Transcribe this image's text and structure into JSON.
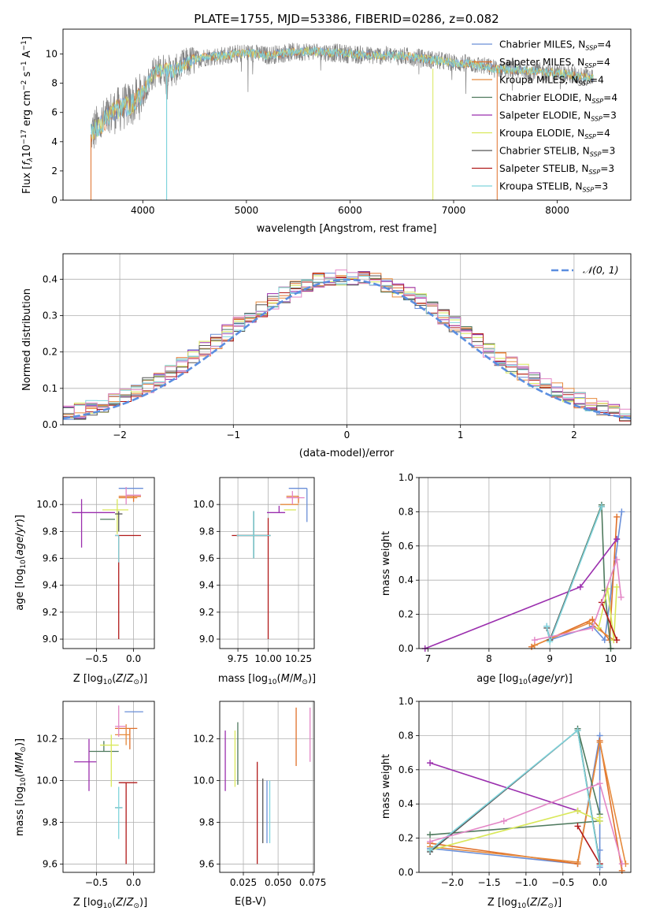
{
  "title": "PLATE=1755, MJD=53386, FIBERID=0286, z=0.082",
  "legend_items": [
    {
      "text": "Chabrier MILES, N$_{SSP}$=4",
      "color": "#6a8fd8"
    },
    {
      "text": "Salpeter MILES, N$_{SSP}$=4",
      "color": "#e0702a"
    },
    {
      "text": "Kroupa MILES, N$_{SSP}$=4",
      "color": "#e68a3c"
    },
    {
      "text": "Chabrier ELODIE, N$_{SSP}$=4",
      "color": "#4f7a5e"
    },
    {
      "text": "Salpeter ELODIE, N$_{SSP}$=3",
      "color": "#9b2fae"
    },
    {
      "text": "Kroupa ELODIE, N$_{SSP}$=4",
      "color": "#d9e85a"
    },
    {
      "text": "Chabrier STELIB, N$_{SSP}$=3",
      "color": "#555555"
    },
    {
      "text": "Salpeter STELIB, N$_{SSP}$=3",
      "color": "#b11a1a"
    },
    {
      "text": "Kroupa STELIB, N$_{SSP}$=3",
      "color": "#7fd4dc"
    }
  ],
  "chart_data": [
    {
      "id": "spectrum",
      "type": "line",
      "xlabel": "wavelength [Angstrom, rest frame]",
      "ylabel": "Flux [$f_\\lambda$10$^{-17}$ erg cm$^{-2}$ s$^{-1}$ A$^{-1}$]",
      "xlim": [
        3230,
        8710
      ],
      "ylim": [
        0,
        11.7
      ],
      "xticks": [
        4000,
        5000,
        6000,
        7000,
        8000
      ],
      "yticks": [
        0,
        2,
        4,
        6,
        8,
        10
      ],
      "continuum": {
        "x": [
          3500,
          3600,
          3700,
          3800,
          3900,
          4000,
          4100,
          4200,
          4300,
          4400,
          4500,
          4600,
          4800,
          5000,
          5200,
          5400,
          5600,
          5800,
          6000,
          6200,
          6400,
          6600,
          6800,
          7000,
          7200,
          7400,
          7600,
          7800,
          8000,
          8200,
          8350
        ],
        "y": [
          4.6,
          5.2,
          6.0,
          6.3,
          6.6,
          7.3,
          8.7,
          9.0,
          8.8,
          9.3,
          9.6,
          9.8,
          9.9,
          10.1,
          9.9,
          10.1,
          10.2,
          10.1,
          10.0,
          9.9,
          9.9,
          9.8,
          9.6,
          9.4,
          9.3,
          9.0,
          8.9,
          8.8,
          8.7,
          8.5,
          8.4
        ]
      },
      "grid": false,
      "legend": "right"
    },
    {
      "id": "residuals",
      "type": "histogram",
      "xlabel": "(data-model)/error",
      "ylabel": "Normed distribution",
      "xlim": [
        -2.5,
        2.5
      ],
      "ylim": [
        0,
        0.47
      ],
      "xticks": [
        -2,
        -1,
        0,
        1,
        2
      ],
      "yticks": [
        0.0,
        0.1,
        0.2,
        0.3,
        0.4
      ],
      "bin_width": 0.1,
      "curve_label": "$\\mathcal{N}(0,1)$",
      "curve_color": "#5b8ee0",
      "grid": true
    },
    {
      "id": "age_vs_Z",
      "type": "scatter",
      "xlabel": "Z [$\\log_{10}(Z/Z_\\odot)$]",
      "ylabel": "age  [$\\log_{10}(age/yr)$]",
      "xlim": [
        -0.95,
        0.28
      ],
      "ylim": [
        8.93,
        10.2
      ],
      "xticks": [
        -0.5,
        0.0
      ],
      "yticks": [
        9.0,
        9.2,
        9.4,
        9.6,
        9.8,
        10.0
      ],
      "points": [
        {
          "x": -0.02,
          "y": 10.12,
          "xerr": [
            0.18,
            0.15
          ],
          "yerr": [
            0.0,
            0.0
          ],
          "color": "#6a8fd8"
        },
        {
          "x": 0.0,
          "y": 10.06,
          "xerr": [
            0.2,
            0.1
          ],
          "yerr": [
            0.04,
            0.0
          ],
          "color": "#e0702a"
        },
        {
          "x": -0.05,
          "y": 10.05,
          "xerr": [
            0.15,
            0.1
          ],
          "yerr": [
            0.0,
            0.0
          ],
          "color": "#e68a3c"
        },
        {
          "x": -0.35,
          "y": 9.89,
          "xerr": [
            0.1,
            0.1
          ],
          "yerr": [
            0.0,
            0.0
          ],
          "color": "#4f7a5e"
        },
        {
          "x": -0.7,
          "y": 9.94,
          "xerr": [
            0.13,
            0.45
          ],
          "yerr": [
            0.26,
            0.1
          ],
          "color": "#9b2fae"
        },
        {
          "x": -0.22,
          "y": 9.96,
          "xerr": [
            0.2,
            0.15
          ],
          "yerr": [
            0.18,
            0.08
          ],
          "color": "#d9e85a"
        },
        {
          "x": -0.2,
          "y": 9.93,
          "xerr": [
            0.05,
            0.05
          ],
          "yerr": [
            0.13,
            0.02
          ],
          "color": "#555555"
        },
        {
          "x": -0.2,
          "y": 9.77,
          "xerr": [
            0.05,
            0.3
          ],
          "yerr": [
            0.77,
            0.0
          ],
          "color": "#b11a1a"
        },
        {
          "x": -0.2,
          "y": 9.77,
          "xerr": [
            0.05,
            0.0
          ],
          "yerr": [
            0.2,
            0.0
          ],
          "color": "#7fd4dc"
        },
        {
          "x": -0.1,
          "y": 10.07,
          "xerr": [
            0.0,
            0.2
          ],
          "yerr": [
            0.07,
            0.06
          ],
          "color": "#e386c6"
        }
      ]
    },
    {
      "id": "age_vs_mass",
      "type": "scatter",
      "xlabel": "mass [$\\log_{10}(M/M_\\odot)$]",
      "ylabel": "",
      "xlim": [
        9.6,
        10.38
      ],
      "ylim": [
        8.93,
        10.2
      ],
      "xticks": [
        9.75,
        10.0,
        10.25
      ],
      "yticks": [
        9.0,
        9.2,
        9.4,
        9.6,
        9.8,
        10.0
      ],
      "points": [
        {
          "x": 10.32,
          "y": 10.12,
          "xerr": [
            0.15,
            0.0
          ],
          "yerr": [
            0.25,
            0.0
          ],
          "color": "#6a8fd8"
        },
        {
          "x": 10.25,
          "y": 10.06,
          "xerr": [
            0.1,
            0.0
          ],
          "yerr": [
            0.05,
            0.0
          ],
          "color": "#e0702a"
        },
        {
          "x": 10.2,
          "y": 10.0,
          "xerr": [
            0.1,
            0.05
          ],
          "yerr": [
            0.0,
            0.0
          ],
          "color": "#e68a3c"
        },
        {
          "x": 9.88,
          "y": 9.77,
          "xerr": [
            0.14,
            0.14
          ],
          "yerr": [
            0.17,
            0.18
          ],
          "color": "#4f7a5e"
        },
        {
          "x": 10.09,
          "y": 9.94,
          "xerr": [
            0.1,
            0.05
          ],
          "yerr": [
            0.0,
            0.05
          ],
          "color": "#9b2fae"
        },
        {
          "x": 10.18,
          "y": 9.96,
          "xerr": [
            0.05,
            0.05
          ],
          "yerr": [
            0.0,
            0.0
          ],
          "color": "#d9e85a"
        },
        {
          "x": 9.88,
          "y": 9.77,
          "xerr": [
            0.14,
            0.14
          ],
          "yerr": [
            0.17,
            0.18
          ],
          "color": "#555555"
        },
        {
          "x": 10.0,
          "y": 9.77,
          "xerr": [
            0.3,
            0.0
          ],
          "yerr": [
            0.77,
            0.13
          ],
          "color": "#b11a1a"
        },
        {
          "x": 9.88,
          "y": 9.77,
          "xerr": [
            0.14,
            0.14
          ],
          "yerr": [
            0.17,
            0.18
          ],
          "color": "#7fd4dc"
        },
        {
          "x": 10.2,
          "y": 10.05,
          "xerr": [
            0.05,
            0.1
          ],
          "yerr": [
            0.05,
            0.05
          ],
          "color": "#e386c6"
        }
      ]
    },
    {
      "id": "weight_vs_age",
      "type": "line",
      "xlabel": "age  [$\\log_{10}(age/yr)$]",
      "ylabel": "mass weight",
      "xlim": [
        6.85,
        10.33
      ],
      "ylim": [
        0,
        1
      ],
      "xticks": [
        7,
        8,
        9,
        10
      ],
      "yticks": [
        0.0,
        0.2,
        0.4,
        0.6,
        0.8,
        1.0
      ],
      "series": [
        {
          "color": "#6a8fd8",
          "x": [
            8.95,
            9.0,
            9.7,
            9.9,
            10.18
          ],
          "y": [
            0.13,
            0.05,
            0.13,
            0.05,
            0.8
          ]
        },
        {
          "color": "#e0702a",
          "x": [
            8.7,
            9.7,
            9.98,
            10.1
          ],
          "y": [
            0.01,
            0.17,
            0.05,
            0.77
          ]
        },
        {
          "color": "#e68a3c",
          "x": [
            8.75,
            9.65,
            10.05
          ],
          "y": [
            0.02,
            0.15,
            0.05
          ]
        },
        {
          "color": "#4f7a5e",
          "x": [
            9.0,
            9.85,
            9.9,
            10.0
          ],
          "y": [
            0.05,
            0.84,
            0.34,
            0.0
          ]
        },
        {
          "color": "#9b2fae",
          "x": [
            6.95,
            9.5,
            10.1
          ],
          "y": [
            0.0,
            0.36,
            0.64
          ]
        },
        {
          "color": "#d9e85a",
          "x": [
            9.8,
            9.95,
            10.05,
            10.1
          ],
          "y": [
            0.12,
            0.35,
            0.05,
            0.36
          ]
        },
        {
          "color": "#555555",
          "x": [
            8.95,
            9.0,
            9.85
          ],
          "y": [
            0.12,
            0.05,
            0.83
          ]
        },
        {
          "color": "#b11a1a",
          "x": [
            9.85,
            10.1
          ],
          "y": [
            0.27,
            0.05
          ]
        },
        {
          "color": "#7fd4dc",
          "x": [
            8.95,
            9.0,
            9.85
          ],
          "y": [
            0.13,
            0.04,
            0.83
          ]
        },
        {
          "color": "#e386c6",
          "x": [
            8.75,
            9.7,
            10.1,
            10.17
          ],
          "y": [
            0.05,
            0.12,
            0.52,
            0.3
          ]
        }
      ],
      "grid": true
    },
    {
      "id": "mass_vs_Z",
      "type": "scatter",
      "xlabel": "Z [$\\log_{10}(Z/Z_\\odot)$]",
      "ylabel": "mass [$\\log_{10}(M/M_\\odot)$]",
      "xlim": [
        -0.95,
        0.28
      ],
      "ylim": [
        9.56,
        10.38
      ],
      "xticks": [
        -0.5,
        0.0
      ],
      "yticks": [
        9.6,
        9.8,
        10.0,
        10.2
      ],
      "points": [
        {
          "x": -0.02,
          "y": 10.33,
          "xerr": [
            0.1,
            0.15
          ],
          "yerr": [
            0.0,
            0.0
          ],
          "color": "#6a8fd8"
        },
        {
          "x": -0.05,
          "y": 10.25,
          "xerr": [
            0.2,
            0.1
          ],
          "yerr": [
            0.1,
            0.0
          ],
          "color": "#e0702a"
        },
        {
          "x": -0.1,
          "y": 10.22,
          "xerr": [
            0.15,
            0.05
          ],
          "yerr": [
            0.05,
            0.05
          ],
          "color": "#e68a3c"
        },
        {
          "x": -0.4,
          "y": 10.14,
          "xerr": [
            0.2,
            0.2
          ],
          "yerr": [
            0.0,
            0.05
          ],
          "color": "#4f7a5e"
        },
        {
          "x": -0.6,
          "y": 10.09,
          "xerr": [
            0.2,
            0.1
          ],
          "yerr": [
            0.14,
            0.11
          ],
          "color": "#9b2fae"
        },
        {
          "x": -0.3,
          "y": 10.17,
          "xerr": [
            0.15,
            0.1
          ],
          "yerr": [
            0.2,
            0.05
          ],
          "color": "#d9e85a"
        },
        {
          "x": -0.2,
          "y": 9.87,
          "xerr": [
            0.05,
            0.05
          ],
          "yerr": [
            0.0,
            0.0
          ],
          "color": "#555555"
        },
        {
          "x": -0.1,
          "y": 9.99,
          "xerr": [
            0.1,
            0.15
          ],
          "yerr": [
            0.39,
            0.0
          ],
          "color": "#b11a1a"
        },
        {
          "x": -0.2,
          "y": 9.87,
          "xerr": [
            0.05,
            0.05
          ],
          "yerr": [
            0.15,
            0.1
          ],
          "color": "#7fd4dc"
        },
        {
          "x": -0.2,
          "y": 10.26,
          "xerr": [
            0.05,
            0.1
          ],
          "yerr": [
            0.05,
            0.1
          ],
          "color": "#e386c6"
        }
      ]
    },
    {
      "id": "mass_vs_ebv",
      "type": "scatter",
      "xlabel": "E(B-V)",
      "ylabel": "",
      "xlim": [
        0.008,
        0.076
      ],
      "ylim": [
        9.56,
        10.38
      ],
      "xticks": [
        0.025,
        0.05,
        0.075
      ],
      "yticks": [
        9.6,
        9.8,
        10.0,
        10.2
      ],
      "points": [
        {
          "x": 0.012,
          "y": 10.1,
          "yerr": [
            0.15,
            0.14
          ],
          "color": "#9b2fae"
        },
        {
          "x": 0.019,
          "y": 10.1,
          "yerr": [
            0.13,
            0.14
          ],
          "color": "#d9e85a"
        },
        {
          "x": 0.021,
          "y": 10.1,
          "yerr": [
            0.12,
            0.18
          ],
          "color": "#4f7a5e"
        },
        {
          "x": 0.035,
          "y": 9.9,
          "yerr": [
            0.3,
            0.19
          ],
          "color": "#b11a1a"
        },
        {
          "x": 0.039,
          "y": 9.85,
          "yerr": [
            0.15,
            0.16
          ],
          "color": "#555555"
        },
        {
          "x": 0.042,
          "y": 9.85,
          "yerr": [
            0.15,
            0.15
          ],
          "color": "#6a8fd8"
        },
        {
          "x": 0.044,
          "y": 9.85,
          "yerr": [
            0.15,
            0.15
          ],
          "color": "#7fd4dc"
        },
        {
          "x": 0.063,
          "y": 10.21,
          "yerr": [
            0.14,
            0.14
          ],
          "color": "#e0702a"
        },
        {
          "x": 0.073,
          "y": 10.22,
          "yerr": [
            0.13,
            0.13
          ],
          "color": "#e386c6"
        }
      ]
    },
    {
      "id": "weight_vs_Z",
      "type": "line",
      "xlabel": "Z [$\\log_{10}(Z/Z_\\odot)$]",
      "ylabel": "mass weight",
      "xlim": [
        -2.45,
        0.42
      ],
      "ylim": [
        0,
        1
      ],
      "xticks": [
        -2.0,
        -1.5,
        -1.0,
        -0.5,
        0.0
      ],
      "yticks": [
        0.0,
        0.2,
        0.4,
        0.6,
        0.8,
        1.0
      ],
      "series": [
        {
          "color": "#6a8fd8",
          "x": [
            -2.3,
            -0.3,
            0.0,
            0.0,
            0.0
          ],
          "y": [
            0.14,
            0.05,
            0.8,
            0.13,
            0.03
          ]
        },
        {
          "color": "#e0702a",
          "x": [
            -2.3,
            -0.3,
            0.0,
            0.3
          ],
          "y": [
            0.17,
            0.05,
            0.77,
            0.01
          ]
        },
        {
          "color": "#e68a3c",
          "x": [
            -2.3,
            -0.3,
            0.0,
            0.35
          ],
          "y": [
            0.15,
            0.06,
            0.76,
            0.05
          ]
        },
        {
          "color": "#4f7a5e",
          "x": [
            -2.3,
            0.0,
            0.0,
            -0.3,
            0.0
          ],
          "y": [
            0.22,
            0.3,
            0.34,
            0.84,
            0.05
          ]
        },
        {
          "color": "#9b2fae",
          "x": [
            -2.3,
            -0.3
          ],
          "y": [
            0.64,
            0.36
          ]
        },
        {
          "color": "#d9e85a",
          "x": [
            -2.3,
            -0.3,
            0.0,
            0.0
          ],
          "y": [
            0.13,
            0.36,
            0.3,
            0.32
          ]
        },
        {
          "color": "#555555",
          "x": [
            -2.3,
            -0.3,
            0.0
          ],
          "y": [
            0.12,
            0.83,
            0.05
          ]
        },
        {
          "color": "#b11a1a",
          "x": [
            -0.3,
            0.0
          ],
          "y": [
            0.27,
            0.05
          ]
        },
        {
          "color": "#7fd4dc",
          "x": [
            -2.3,
            -0.3,
            0.0
          ],
          "y": [
            0.13,
            0.83,
            0.04
          ]
        },
        {
          "color": "#e386c6",
          "x": [
            -2.3,
            -1.3,
            0.0,
            0.3
          ],
          "y": [
            0.18,
            0.3,
            0.52,
            0.05
          ]
        }
      ],
      "grid": true
    }
  ]
}
